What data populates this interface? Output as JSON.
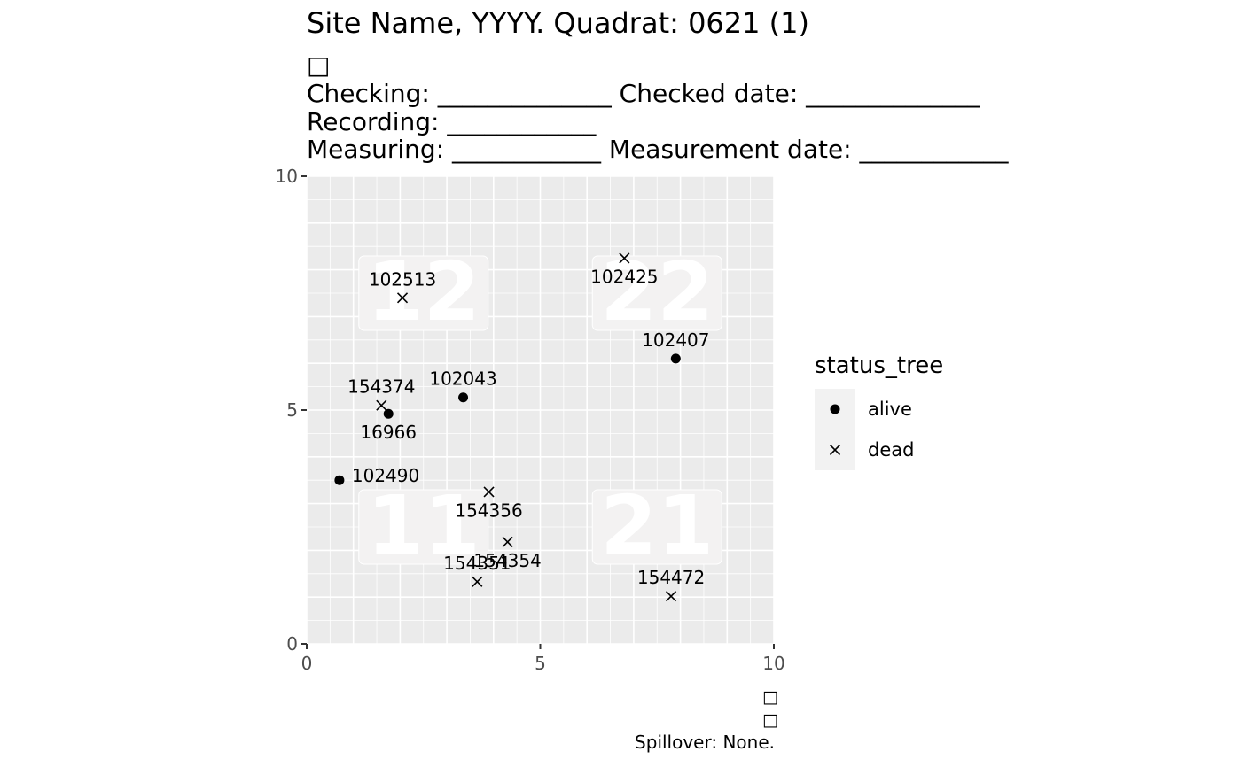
{
  "header": {
    "title": "Site Name, YYYY. Quadrat: 0621 (1)",
    "glyph": "□",
    "checking_line": "Checking: ______________ Checked date: ______________",
    "recording_line": "Recording: ____________",
    "measuring_line": "Measuring: ____________ Measurement date: ____________"
  },
  "caption": {
    "glyph_top": "□",
    "glyph_bottom": "□",
    "spillover": "Spillover: None."
  },
  "chart_data": {
    "type": "scatter",
    "xlim": [
      0,
      10
    ],
    "ylim": [
      0,
      10
    ],
    "x_ticks": [
      "0",
      "5",
      "10"
    ],
    "y_ticks": [
      "0",
      "5",
      "10"
    ],
    "grid": true,
    "quadrat_labels": [
      {
        "text": "12",
        "x": 2.5,
        "y": 7.5
      },
      {
        "text": "22",
        "x": 7.5,
        "y": 7.5
      },
      {
        "text": "11",
        "x": 2.5,
        "y": 2.5
      },
      {
        "text": "21",
        "x": 7.5,
        "y": 2.5
      }
    ],
    "legend": {
      "title": "status_tree",
      "position": "right",
      "entries": [
        {
          "label": "alive",
          "shape": "dot"
        },
        {
          "label": "dead",
          "shape": "cross"
        }
      ]
    },
    "points": [
      {
        "id": "102513",
        "x": 2.05,
        "y": 7.4,
        "status": "dead",
        "label_pos": "above"
      },
      {
        "id": "102425",
        "x": 6.8,
        "y": 8.25,
        "status": "dead",
        "label_pos": "below"
      },
      {
        "id": "102407",
        "x": 7.9,
        "y": 6.1,
        "status": "alive",
        "label_pos": "above"
      },
      {
        "id": "154374",
        "x": 1.6,
        "y": 5.1,
        "status": "dead",
        "label_pos": "above"
      },
      {
        "id": "16966",
        "x": 1.75,
        "y": 4.92,
        "status": "alive",
        "label_pos": "below"
      },
      {
        "id": "102043",
        "x": 3.35,
        "y": 5.27,
        "status": "alive",
        "label_pos": "above"
      },
      {
        "id": "102490",
        "x": 0.7,
        "y": 3.5,
        "status": "alive",
        "label_pos": "right"
      },
      {
        "id": "154356",
        "x": 3.9,
        "y": 3.25,
        "status": "dead",
        "label_pos": "below"
      },
      {
        "id": "154354",
        "x": 4.3,
        "y": 2.18,
        "status": "dead",
        "label_pos": "below"
      },
      {
        "id": "154351",
        "x": 3.65,
        "y": 1.33,
        "status": "dead",
        "label_pos": "above"
      },
      {
        "id": "154472",
        "x": 7.8,
        "y": 1.02,
        "status": "dead",
        "label_pos": "above"
      }
    ]
  }
}
